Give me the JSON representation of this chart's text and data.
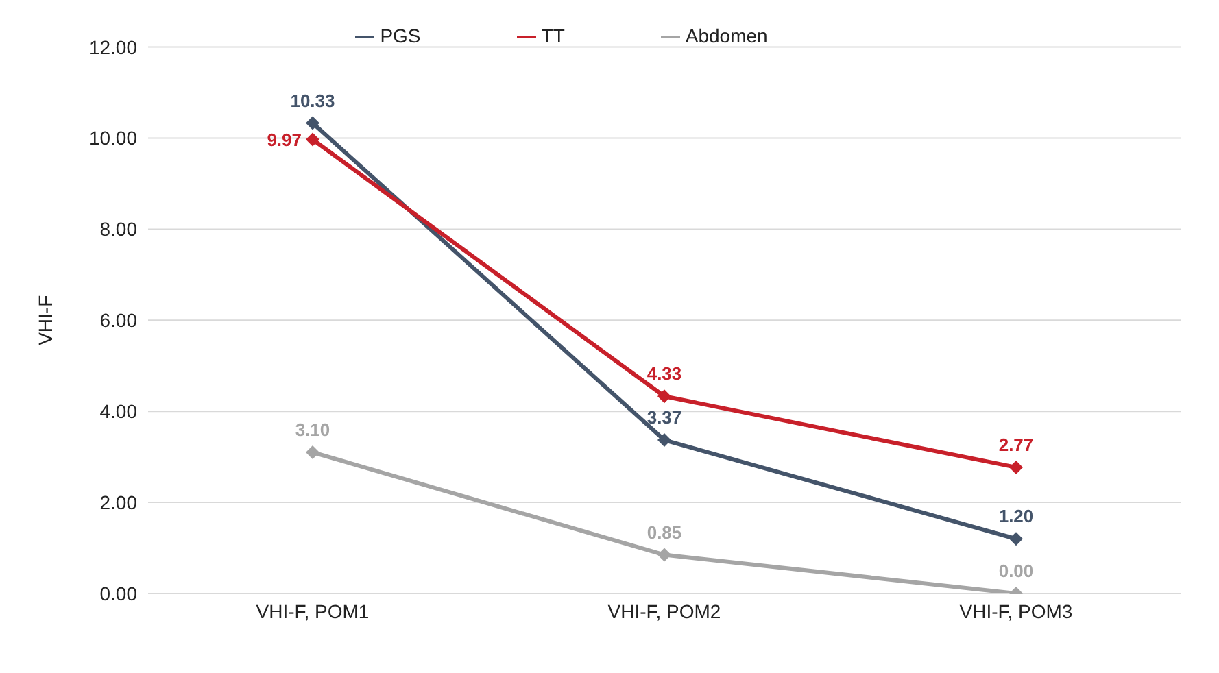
{
  "chart_data": {
    "type": "line",
    "ylabel": "VHI-F",
    "categories": [
      "VHI-F, POM1",
      "VHI-F, POM2",
      "VHI-F, POM3"
    ],
    "series": [
      {
        "name": "PGS",
        "color": "#44546a",
        "values": [
          10.33,
          3.37,
          1.2
        ],
        "value_labels": [
          "10.33",
          "3.37",
          "1.20"
        ]
      },
      {
        "name": "TT",
        "color": "#c8202a",
        "values": [
          9.97,
          4.33,
          2.77
        ],
        "value_labels": [
          "9.97",
          "4.33",
          "2.77"
        ]
      },
      {
        "name": "Abdomen",
        "color": "#a5a5a5",
        "values": [
          3.1,
          0.85,
          0.0
        ],
        "value_labels": [
          "3.10",
          "0.85",
          "0.00"
        ]
      }
    ],
    "ylim": [
      0,
      12
    ],
    "yticks": [
      {
        "value": 0,
        "label": "0.00"
      },
      {
        "value": 2,
        "label": "2.00"
      },
      {
        "value": 4,
        "label": "4.00"
      },
      {
        "value": 6,
        "label": "6.00"
      },
      {
        "value": 8,
        "label": "8.00"
      },
      {
        "value": 10,
        "label": "10.00"
      },
      {
        "value": 12,
        "label": "12.00"
      }
    ],
    "grid": "y",
    "legend": "top",
    "marker": "diamond",
    "line_style": "solid"
  }
}
